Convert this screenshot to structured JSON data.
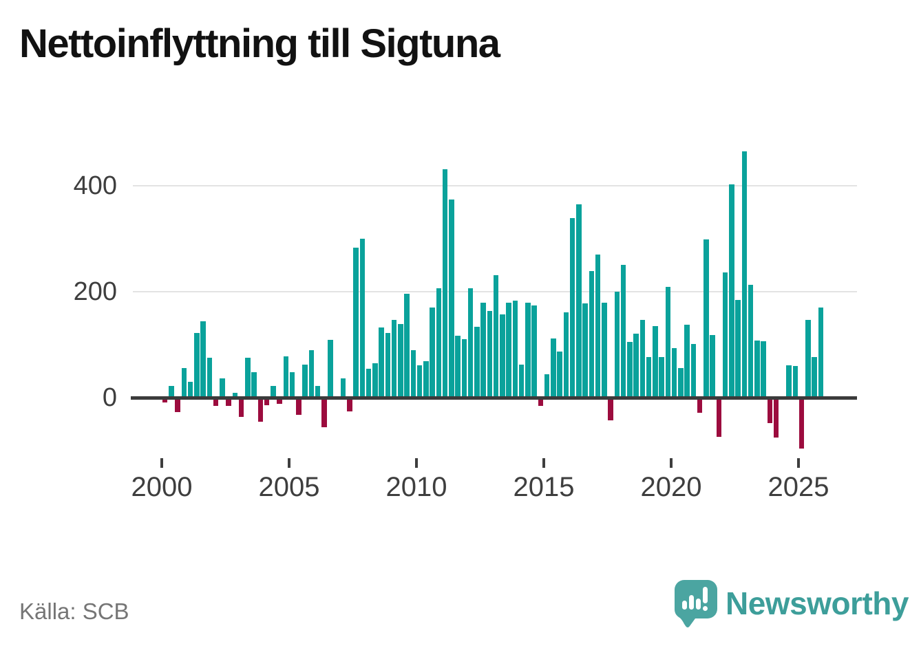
{
  "title": "Nettoinflyttning till Sigtuna",
  "source": "Källa: SCB",
  "branding": {
    "logo_text": "Newsworthy",
    "logo_icon": "speech-bubble-bar-chart-icon"
  },
  "chart_data": {
    "type": "bar",
    "title": "Nettoinflyttning till Sigtuna",
    "xlabel": "",
    "ylabel": "",
    "ylim": [
      -120,
      480
    ],
    "yticks": [
      0,
      200,
      400
    ],
    "xticks": [
      2000,
      2005,
      2010,
      2015,
      2020,
      2025
    ],
    "grid": "horizontal",
    "legend": "none",
    "frequency": "quarterly",
    "positive_color": "#0aa29b",
    "negative_color": "#9c0c3e",
    "axis_color": "#3b3b3b",
    "gridline_color": "#e3e3e3",
    "tick_label_color": "#3e3e3e",
    "quarters": [
      "2000 Q1",
      "2000 Q2",
      "2000 Q3",
      "2000 Q4",
      "2001 Q1",
      "2001 Q2",
      "2001 Q3",
      "2001 Q4",
      "2002 Q1",
      "2002 Q2",
      "2002 Q3",
      "2002 Q4",
      "2003 Q1",
      "2003 Q2",
      "2003 Q3",
      "2003 Q4",
      "2004 Q1",
      "2004 Q2",
      "2004 Q3",
      "2004 Q4",
      "2005 Q1",
      "2005 Q2",
      "2005 Q3",
      "2005 Q4",
      "2006 Q1",
      "2006 Q2",
      "2006 Q3",
      "2006 Q4",
      "2007 Q1",
      "2007 Q2",
      "2007 Q3",
      "2007 Q4",
      "2008 Q1",
      "2008 Q2",
      "2008 Q3",
      "2008 Q4",
      "2009 Q1",
      "2009 Q2",
      "2009 Q3",
      "2009 Q4",
      "2010 Q1",
      "2010 Q2",
      "2010 Q3",
      "2010 Q4",
      "2011 Q1",
      "2011 Q2",
      "2011 Q3",
      "2011 Q4",
      "2012 Q1",
      "2012 Q2",
      "2012 Q3",
      "2012 Q4",
      "2013 Q1",
      "2013 Q2",
      "2013 Q3",
      "2013 Q4",
      "2014 Q1",
      "2014 Q2",
      "2014 Q3",
      "2014 Q4",
      "2015 Q1",
      "2015 Q2",
      "2015 Q3",
      "2015 Q4",
      "2016 Q1",
      "2016 Q2",
      "2016 Q3",
      "2016 Q4",
      "2017 Q1",
      "2017 Q2",
      "2017 Q3",
      "2017 Q4",
      "2018 Q1",
      "2018 Q2",
      "2018 Q3",
      "2018 Q4",
      "2019 Q1",
      "2019 Q2",
      "2019 Q3",
      "2019 Q4",
      "2020 Q1",
      "2020 Q2",
      "2020 Q3",
      "2020 Q4",
      "2021 Q1",
      "2021 Q2",
      "2021 Q3",
      "2021 Q4",
      "2022 Q1",
      "2022 Q2",
      "2022 Q3",
      "2022 Q4",
      "2023 Q1",
      "2023 Q2",
      "2023 Q3",
      "2023 Q4",
      "2024 Q1",
      "2024 Q2",
      "2024 Q3",
      "2024 Q4",
      "2025 Q1",
      "2025 Q2",
      "2025 Q3",
      "2025 Q4"
    ],
    "values": [
      -5,
      20,
      -23,
      53,
      27,
      120,
      142,
      73,
      -11,
      34,
      -12,
      7,
      -33,
      73,
      46,
      -42,
      -10,
      20,
      -8,
      75,
      46,
      -29,
      60,
      87,
      20,
      -52,
      106,
      0,
      34,
      -22,
      280,
      297,
      52,
      63,
      130,
      120,
      144,
      137,
      193,
      87,
      59,
      66,
      168,
      204,
      429,
      372,
      114,
      108,
      204,
      131,
      177,
      161,
      228,
      155,
      177,
      181,
      60,
      177,
      172,
      -11,
      42,
      109,
      85,
      159,
      337,
      363,
      175,
      236,
      267,
      177,
      -39,
      197,
      248,
      103,
      118,
      144,
      74,
      133,
      74,
      206,
      91,
      53,
      135,
      99,
      -24,
      296,
      116,
      -70,
      234,
      400,
      182,
      463,
      211,
      105,
      104,
      -44,
      -72,
      0,
      59,
      57,
      -92,
      144,
      74,
      168
    ]
  }
}
